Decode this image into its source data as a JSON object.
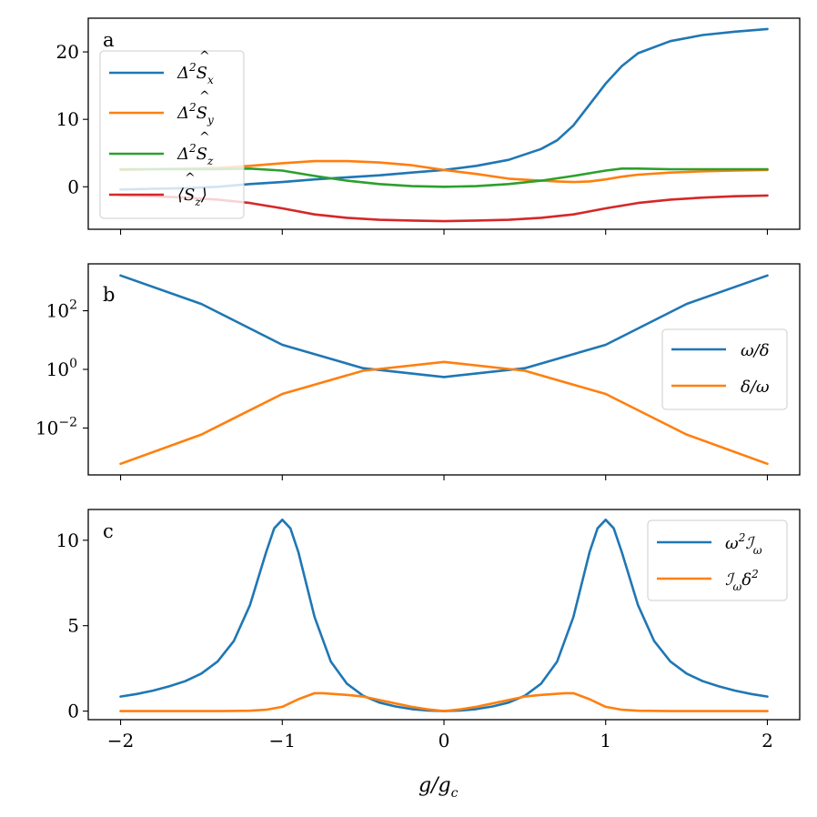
{
  "colors": {
    "blue": "#1f77b4",
    "orange": "#ff7f0e",
    "green": "#2ca02c",
    "red": "#d62728"
  },
  "chart_data": [
    {
      "type": "line",
      "panel": "a",
      "xlim": [
        -2.2,
        2.2
      ],
      "ylim": [
        -6.3,
        25
      ],
      "yscale": "linear",
      "yticks": [
        0,
        10,
        20
      ],
      "ytick_labels": [
        "0",
        "10",
        "20"
      ],
      "legend": "top-left",
      "series": [
        {
          "name": "Δ²Ŝₓ",
          "color": "#1f77b4",
          "x": [
            -2,
            -1.8,
            -1.6,
            -1.4,
            -1.2,
            -1,
            -0.8,
            -0.6,
            -0.4,
            -0.2,
            0,
            0.2,
            0.4,
            0.6,
            0.7,
            0.8,
            0.9,
            1,
            1.1,
            1.2,
            1.4,
            1.6,
            1.8,
            2
          ],
          "y": [
            -0.4,
            -0.3,
            -0.2,
            0,
            0.4,
            0.7,
            1.1,
            1.4,
            1.7,
            2.1,
            2.5,
            3.1,
            4.0,
            5.6,
            6.9,
            9.1,
            12.2,
            15.3,
            17.9,
            19.8,
            21.6,
            22.5,
            23.0,
            23.4
          ]
        },
        {
          "name": "Δ²Ŝᵧ",
          "color": "#ff7f0e",
          "x": [
            -2,
            -1.8,
            -1.6,
            -1.4,
            -1.2,
            -1,
            -0.8,
            -0.6,
            -0.4,
            -0.2,
            0,
            0.2,
            0.4,
            0.6,
            0.7,
            0.8,
            0.9,
            1,
            1.1,
            1.2,
            1.4,
            1.6,
            1.8,
            2
          ],
          "y": [
            2.5,
            2.6,
            2.7,
            2.8,
            3.1,
            3.5,
            3.8,
            3.8,
            3.6,
            3.2,
            2.5,
            1.9,
            1.2,
            0.9,
            0.8,
            0.7,
            0.8,
            1.1,
            1.5,
            1.8,
            2.1,
            2.3,
            2.4,
            2.5
          ]
        },
        {
          "name": "Δ²Ŝ_z",
          "color": "#2ca02c",
          "x": [
            -2,
            -1.8,
            -1.6,
            -1.4,
            -1.2,
            -1,
            -0.8,
            -0.6,
            -0.4,
            -0.2,
            0,
            0.2,
            0.4,
            0.6,
            0.8,
            1,
            1.1,
            1.2,
            1.4,
            1.6,
            1.8,
            2
          ],
          "y": [
            2.6,
            2.6,
            2.6,
            2.6,
            2.7,
            2.4,
            1.6,
            0.9,
            0.4,
            0.1,
            0,
            0.1,
            0.4,
            0.9,
            1.6,
            2.4,
            2.7,
            2.7,
            2.6,
            2.6,
            2.6,
            2.6
          ]
        },
        {
          "name": "⟨Ŝ_z⟩",
          "color": "#d62728",
          "x": [
            -2,
            -1.8,
            -1.6,
            -1.4,
            -1.2,
            -1,
            -0.8,
            -0.6,
            -0.4,
            -0.2,
            0,
            0.2,
            0.4,
            0.6,
            0.8,
            1,
            1.2,
            1.4,
            1.6,
            1.8,
            2
          ],
          "y": [
            -1.3,
            -1.4,
            -1.6,
            -1.9,
            -2.4,
            -3.2,
            -4.1,
            -4.6,
            -4.9,
            -5.0,
            -5.1,
            -5.0,
            -4.9,
            -4.6,
            -4.1,
            -3.2,
            -2.4,
            -1.9,
            -1.6,
            -1.4,
            -1.3
          ]
        }
      ]
    },
    {
      "type": "line",
      "panel": "b",
      "xlim": [
        -2.2,
        2.2
      ],
      "ylim_log10": [
        -3.6,
        3.6
      ],
      "yscale": "log",
      "yticks": [
        0.01,
        1,
        100
      ],
      "ytick_labels": [
        "10",
        "10",
        "10"
      ],
      "ytick_exponents": [
        "−2",
        "0",
        "2"
      ],
      "legend": "center-right",
      "series": [
        {
          "name": "ω/δ",
          "color": "#1f77b4",
          "x": [
            -2,
            -1.5,
            -1,
            -0.5,
            0,
            0.5,
            1,
            1.5,
            2
          ],
          "y": [
            1600,
            170,
            6.9,
            1.1,
            0.55,
            1.1,
            6.9,
            170,
            1600
          ]
        },
        {
          "name": "δ/ω",
          "color": "#ff7f0e",
          "x": [
            -2,
            -1.5,
            -1,
            -0.5,
            0,
            0.5,
            1,
            1.5,
            2
          ],
          "y": [
            0.0006,
            0.006,
            0.145,
            0.9,
            1.8,
            0.9,
            0.145,
            0.006,
            0.0006
          ]
        }
      ]
    },
    {
      "type": "line",
      "panel": "c",
      "xlim": [
        -2.2,
        2.2
      ],
      "ylim": [
        -0.5,
        11.8
      ],
      "yscale": "linear",
      "yticks": [
        0,
        5,
        10
      ],
      "ytick_labels": [
        "0",
        "5",
        "10"
      ],
      "xticks": [
        -2,
        -1,
        0,
        1,
        2
      ],
      "xtick_labels": [
        "−2",
        "−1",
        "0",
        "1",
        "2"
      ],
      "xlabel": "g/g",
      "xlabel_sub": "c",
      "legend": "top-right",
      "series": [
        {
          "name": "ω²ℐ",
          "color": "#1f77b4",
          "x": [
            -2,
            -1.9,
            -1.8,
            -1.7,
            -1.6,
            -1.5,
            -1.4,
            -1.3,
            -1.2,
            -1.1,
            -1.05,
            -1,
            -0.95,
            -0.9,
            -0.8,
            -0.7,
            -0.6,
            -0.5,
            -0.4,
            -0.3,
            -0.2,
            -0.1,
            0,
            0.1,
            0.2,
            0.3,
            0.4,
            0.5,
            0.6,
            0.7,
            0.8,
            0.9,
            0.95,
            1,
            1.05,
            1.1,
            1.2,
            1.3,
            1.4,
            1.5,
            1.6,
            1.7,
            1.8,
            1.9,
            2
          ],
          "y": [
            0.85,
            1.0,
            1.2,
            1.45,
            1.75,
            2.2,
            2.9,
            4.1,
            6.2,
            9.3,
            10.7,
            11.2,
            10.7,
            9.3,
            5.5,
            2.9,
            1.6,
            0.9,
            0.5,
            0.27,
            0.12,
            0.03,
            0,
            0.03,
            0.12,
            0.27,
            0.5,
            0.9,
            1.6,
            2.9,
            5.5,
            9.3,
            10.7,
            11.2,
            10.7,
            9.3,
            6.2,
            4.1,
            2.9,
            2.2,
            1.75,
            1.45,
            1.2,
            1.0,
            0.85
          ]
        },
        {
          "name": "ℐδ²",
          "color": "#ff7f0e",
          "x": [
            -2,
            -1.8,
            -1.6,
            -1.4,
            -1.2,
            -1.1,
            -1,
            -0.9,
            -0.8,
            -0.75,
            -0.6,
            -0.5,
            -0.4,
            -0.3,
            -0.2,
            -0.1,
            0,
            0.1,
            0.2,
            0.3,
            0.4,
            0.5,
            0.6,
            0.75,
            0.8,
            0.9,
            1,
            1.1,
            1.2,
            1.4,
            1.6,
            1.8,
            2
          ],
          "y": [
            0,
            0,
            0,
            0,
            0.02,
            0.08,
            0.25,
            0.7,
            1.05,
            1.05,
            0.95,
            0.85,
            0.65,
            0.45,
            0.25,
            0.1,
            0,
            0.1,
            0.25,
            0.45,
            0.65,
            0.85,
            0.95,
            1.05,
            1.05,
            0.7,
            0.25,
            0.08,
            0.02,
            0,
            0,
            0,
            0
          ]
        }
      ]
    }
  ],
  "panels": {
    "a": {
      "label": "a",
      "legend": [
        {
          "base": "Δ",
          "sup": "2",
          "hat": "S",
          "sub": "x"
        },
        {
          "base": "Δ",
          "sup": "2",
          "hat": "S",
          "sub": "y"
        },
        {
          "base": "Δ",
          "sup": "2",
          "hat": "S",
          "sub": "z"
        },
        {
          "base": "⟨",
          "sup": "",
          "hat": "S",
          "sub": "z",
          "close": "⟩"
        }
      ]
    },
    "b": {
      "label": "b",
      "legend": [
        {
          "text": "ω/δ"
        },
        {
          "text": "δ/ω"
        }
      ]
    },
    "c": {
      "label": "c",
      "legend": [
        {
          "pre": "ω",
          "sup": "2",
          "main": "ℐ",
          "sub": "ω",
          "post": ""
        },
        {
          "pre": "",
          "sup": "",
          "main": "ℐ",
          "sub": "ω",
          "post": "δ",
          "post_sup": "2"
        }
      ]
    }
  }
}
